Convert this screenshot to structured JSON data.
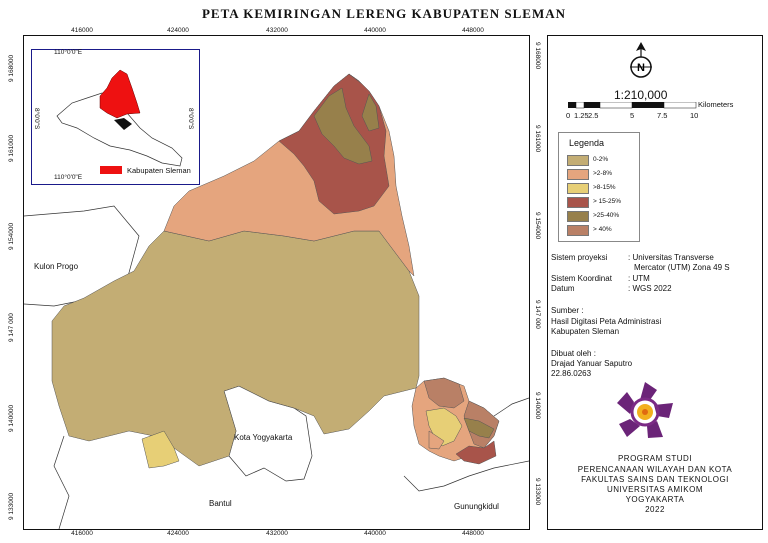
{
  "title": "PETA KEMIRINGAN LERENG KABUPATEN SLEMAN",
  "map": {
    "x_ticks": [
      "416000",
      "424000",
      "432000",
      "440000",
      "448000"
    ],
    "y_ticks": [
      "9 168000",
      "9 161000",
      "9 154000",
      "9 147 000",
      "9 140000",
      "9 133000"
    ],
    "labels": {
      "kulon_progo": "Kulon Progo",
      "kota_yogyakarta": "Kota Yogyakarta",
      "bantul": "Bantul",
      "gunungkidul": "Gunungkidul"
    },
    "colors": {
      "slope_0_2": "#c3ad74",
      "slope_2_8": "#e5a57e",
      "slope_8_15": "#e7cf76",
      "slope_15_25": "#a8544a",
      "slope_25_40": "#97804b",
      "slope_40": "#b98066"
    }
  },
  "inset": {
    "top_label": "110°0'0\"E",
    "bottom_label": "110°0'0\"E",
    "left_label": "8°0'0\"S",
    "right_label": "8°0'0\"S",
    "legend_label": "Kabupaten Sleman",
    "legend_color": "#ee1111"
  },
  "north_letter": "N",
  "scale": {
    "ratio": "1:210,000",
    "unit": "Kilometers",
    "ticks": [
      "0",
      "1.25",
      "2.5",
      "5",
      "7.5",
      "10"
    ]
  },
  "legend": {
    "title": "Legenda",
    "items": [
      {
        "label": "0-2%",
        "color": "#c3ad74"
      },
      {
        "label": ">2-8%",
        "color": "#e5a57e"
      },
      {
        "label": ">8-15%",
        "color": "#e7cf76"
      },
      {
        "label": "> 15-25%",
        "color": "#a8544a"
      },
      {
        "label": ">25-40%",
        "color": "#97804b"
      },
      {
        "label": "> 40%",
        "color": "#b98066"
      }
    ]
  },
  "projection": {
    "sistem_proyeksi_label": "Sistem proyeksi",
    "sistem_proyeksi_value_1": ": Universitas Transverse",
    "sistem_proyeksi_value_2": "Mercator (UTM) Zona 49 S",
    "sistem_koordinat_label": "Sistem Koordinat",
    "sistem_koordinat_value": ": UTM",
    "datum_label": "Datum",
    "datum_value": ": WGS 2022"
  },
  "source": {
    "label": "Sumber :",
    "line1": "Hasil Digitasi Peta Administrasi",
    "line2": "Kabupaten Sleman"
  },
  "author": {
    "label": "Dibuat oleh :",
    "name": "Drajad Yanuar Saputro",
    "id": "22.86.0263"
  },
  "institution": {
    "line1": "PROGRAM STUDI",
    "line2": "PERENCANAAN WILAYAH DAN KOTA",
    "line3": "FAKULTAS SAINS DAN TEKNOLOGI",
    "line4": "UNIVERSITAS AMIKOM",
    "line5": "YOGYAKARTA",
    "line6": "2022"
  }
}
